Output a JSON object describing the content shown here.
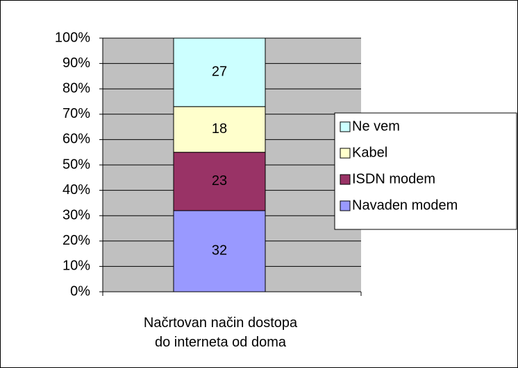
{
  "chart_data": {
    "type": "stacked_bar_100",
    "categories": [
      "Načrtovan način dostopa do interneta od doma"
    ],
    "series": [
      {
        "name": "Navaden modem",
        "color": "#9999ff",
        "values": [
          32
        ]
      },
      {
        "name": "ISDN modem",
        "color": "#993366",
        "values": [
          23
        ]
      },
      {
        "name": "Kabel",
        "color": "#ffffcc",
        "values": [
          18
        ]
      },
      {
        "name": "Ne vem",
        "color": "#ccffff",
        "values": [
          27
        ]
      }
    ],
    "ylim": [
      0,
      100
    ],
    "yticks": [
      {
        "value": 0,
        "label": "0%"
      },
      {
        "value": 10,
        "label": "10%"
      },
      {
        "value": 20,
        "label": "20%"
      },
      {
        "value": 30,
        "label": "30%"
      },
      {
        "value": 40,
        "label": "40%"
      },
      {
        "value": 50,
        "label": "50%"
      },
      {
        "value": 60,
        "label": "60%"
      },
      {
        "value": 70,
        "label": "70%"
      },
      {
        "value": 80,
        "label": "80%"
      },
      {
        "value": 90,
        "label": "90%"
      },
      {
        "value": 100,
        "label": "100%"
      }
    ],
    "grid": true,
    "plot_background": "#c0c0c0",
    "legend": "right"
  }
}
